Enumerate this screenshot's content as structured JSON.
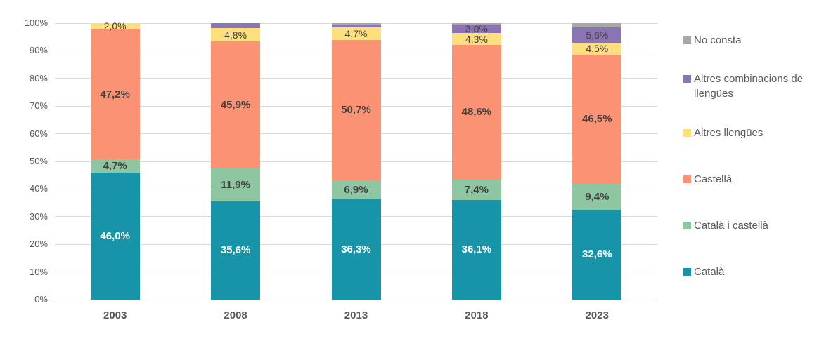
{
  "chart_data": {
    "type": "bar",
    "stacked": true,
    "orientation": "vertical",
    "title": "",
    "xlabel": "",
    "ylabel": "",
    "ylim": [
      0,
      100
    ],
    "grid": true,
    "legend_position": "right",
    "y_ticks": [
      "0%",
      "10%",
      "20%",
      "30%",
      "40%",
      "50%",
      "60%",
      "70%",
      "80%",
      "90%",
      "100%"
    ],
    "categories": [
      "2003",
      "2008",
      "2013",
      "2018",
      "2023"
    ],
    "series": [
      {
        "name": "Català",
        "color": "#1794A8",
        "values": [
          46.0,
          35.6,
          36.3,
          36.1,
          32.6
        ],
        "labels": [
          "46,0%",
          "35,6%",
          "36,3%",
          "36,1%",
          "32,6%"
        ],
        "label_color": "#FFFFFF",
        "label_bold": true
      },
      {
        "name": "Català i castellà",
        "color": "#8DC6A1",
        "values": [
          4.7,
          11.9,
          6.9,
          7.4,
          9.4
        ],
        "labels": [
          "4,7%",
          "11,9%",
          "6,9%",
          "7,4%",
          "9,4%"
        ],
        "label_color": "#404040",
        "label_bold": true
      },
      {
        "name": "Castellà",
        "color": "#FB9273",
        "values": [
          47.2,
          45.9,
          50.7,
          48.6,
          46.5
        ],
        "labels": [
          "47,2%",
          "45,9%",
          "50,7%",
          "48,6%",
          "46,5%"
        ],
        "label_color": "#404040",
        "label_bold": true
      },
      {
        "name": "Altres llengües",
        "color": "#FEDF7E",
        "values": [
          2.0,
          4.8,
          4.7,
          4.3,
          4.5
        ],
        "labels": [
          "2,0%",
          "4,8%",
          "4,7%",
          "4,3%",
          "4,5%"
        ],
        "label_color": "#404040",
        "label_bold": false
      },
      {
        "name": "Altres combinacions de llengües",
        "color": "#8A74B4",
        "values": [
          0.0,
          1.8,
          1.0,
          3.0,
          5.6
        ],
        "labels": [
          "",
          "",
          "",
          "3,0%",
          "5,6%"
        ],
        "label_color": "#404040",
        "label_bold": false
      },
      {
        "name": "No consta",
        "color": "#A8A8A8",
        "values": [
          0.0,
          0.0,
          0.4,
          0.6,
          1.4
        ],
        "labels": [
          "",
          "",
          "",
          "",
          ""
        ],
        "label_color": "#404040",
        "label_bold": false
      }
    ]
  },
  "style": {
    "gridline_color": "#D9D9D9",
    "baseline_color": "#C3C3C3",
    "tick_text_color": "#595959",
    "data_label_color": "#404040",
    "legend_text_color": "#595959"
  }
}
